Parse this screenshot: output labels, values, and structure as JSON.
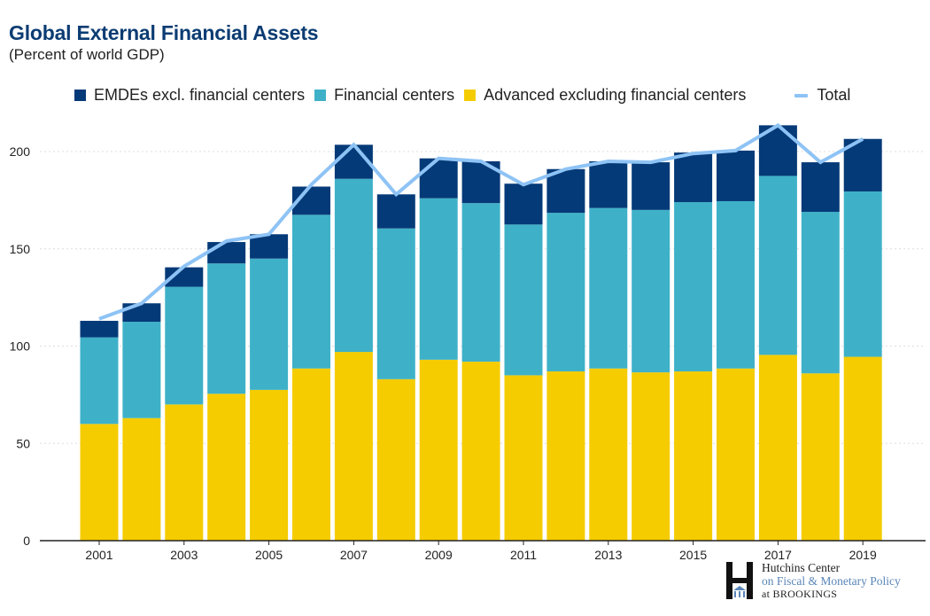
{
  "title": "Global External Financial Assets",
  "subtitle": "(Percent of world GDP)",
  "colors": {
    "emdes": "#053a78",
    "financial_centers": "#3eb1c8",
    "advanced": "#f5cc00",
    "total": "#8ec3f5",
    "axis": "#222222",
    "grid": "#dddddd"
  },
  "legend": {
    "emdes": "EMDEs excl. financial centers",
    "financial_centers": "Financial centers",
    "advanced": "Advanced excluding financial centers",
    "total": "Total"
  },
  "logo": {
    "line1": "Hutchins Center",
    "line2": "on Fiscal & Monetary Policy",
    "line3": "at BROOKINGS"
  },
  "chart_data": {
    "type": "bar",
    "stacked": true,
    "title": "Global External Financial Assets",
    "subtitle": "(Percent of world GDP)",
    "categories": [
      "2001",
      "2002",
      "2003",
      "2004",
      "2005",
      "2006",
      "2007",
      "2008",
      "2009",
      "2010",
      "2011",
      "2012",
      "2013",
      "2014",
      "2015",
      "2016",
      "2017",
      "2018",
      "2019"
    ],
    "x_tick_labels": [
      "2001",
      "2003",
      "2005",
      "2007",
      "2009",
      "2011",
      "2013",
      "2015",
      "2017",
      "2019"
    ],
    "y_ticks": [
      0,
      50,
      100,
      150,
      200
    ],
    "ylim": [
      0,
      220
    ],
    "grid": true,
    "legend_position": "top",
    "series": [
      {
        "name": "Advanced excluding financial centers",
        "color_key": "advanced",
        "values": [
          60,
          63,
          70,
          75.5,
          77.5,
          88.5,
          97,
          83,
          93,
          92,
          85,
          87,
          88.5,
          86.5,
          87,
          88.5,
          95.5,
          86,
          94.5
        ]
      },
      {
        "name": "Financial centers",
        "color_key": "financial_centers",
        "values": [
          44.5,
          49.5,
          60.5,
          67,
          67.5,
          79,
          89,
          77.5,
          83,
          81.5,
          77.5,
          81.5,
          82.5,
          83.5,
          87,
          86,
          92,
          83,
          85
        ]
      },
      {
        "name": "EMDEs excl. financial centers",
        "color_key": "emdes",
        "values": [
          8.5,
          9.5,
          10,
          11,
          12.5,
          14.5,
          17.5,
          17.5,
          20.5,
          21.5,
          21,
          22.5,
          24,
          24.5,
          25.5,
          26,
          26,
          25.5,
          27
        ]
      }
    ],
    "line": {
      "name": "Total",
      "color_key": "total",
      "values": [
        114,
        122,
        141,
        154,
        157.5,
        183,
        203.5,
        178,
        196.5,
        195,
        183,
        191,
        195,
        194.5,
        199,
        200.5,
        213.5,
        194.5,
        206.5
      ]
    }
  }
}
